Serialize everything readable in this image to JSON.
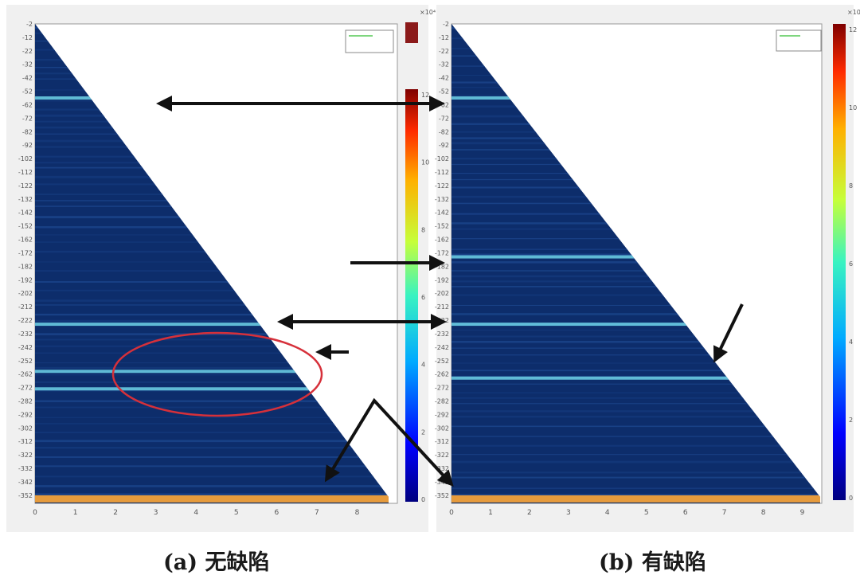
{
  "chart_data": [
    {
      "type": "heatmap",
      "panel": "a",
      "title": "",
      "xlabel": "",
      "ylabel": "",
      "x_ticks": [
        "0",
        "1",
        "2",
        "3",
        "4",
        "5",
        "6",
        "7",
        "8"
      ],
      "y_ticks": [
        "-2",
        "-12",
        "-22",
        "-32",
        "-42",
        "-52",
        "-62",
        "-72",
        "-82",
        "-92",
        "-102",
        "-112",
        "-122",
        "-132",
        "-142",
        "-152",
        "-162",
        "-172",
        "-182",
        "-192",
        "-202",
        "-212",
        "-222",
        "-232",
        "-242",
        "-252",
        "-262",
        "-272",
        "-282",
        "-292",
        "-302",
        "-312",
        "-322",
        "-332",
        "-342",
        "-352"
      ],
      "xlim": [
        0,
        9
      ],
      "ylim": [
        -2,
        -358
      ],
      "colorbar_ticks": [
        "12",
        "10",
        "8",
        "6",
        "4",
        "2",
        "0"
      ],
      "colorbar_exponent": "×10⁴",
      "colormap": "jet",
      "bright_bands_y": [
        -57,
        -225,
        -260,
        -273,
        -355
      ]
    },
    {
      "type": "heatmap",
      "panel": "b",
      "title": "",
      "xlabel": "",
      "ylabel": "",
      "x_ticks": [
        "0",
        "1",
        "2",
        "3",
        "4",
        "5",
        "6",
        "7",
        "8",
        "9"
      ],
      "y_ticks": [
        "-2",
        "-12",
        "-22",
        "-32",
        "-42",
        "-52",
        "-62",
        "-72",
        "-82",
        "-92",
        "-102",
        "-112",
        "-122",
        "-132",
        "-142",
        "-152",
        "-162",
        "-172",
        "-182",
        "-192",
        "-202",
        "-212",
        "-222",
        "-232",
        "-242",
        "-252",
        "-262",
        "-272",
        "-282",
        "-292",
        "-302",
        "-312",
        "-322",
        "-332",
        "-342",
        "-352"
      ],
      "xlim": [
        0,
        9.5
      ],
      "ylim": [
        -2,
        -358
      ],
      "colorbar_ticks": [
        "12",
        "10",
        "8",
        "6",
        "4",
        "2",
        "0"
      ],
      "colorbar_exponent": "×10⁴",
      "colormap": "jet",
      "bright_bands_y": [
        -57,
        -175,
        -225,
        -265,
        -355
      ]
    }
  ],
  "captions": {
    "a": "(a) 无缺陷",
    "b": "(b) 有缺陷"
  },
  "colors": {
    "panel_bg": "#f0f0f0",
    "heat_base": "#0d2d6b",
    "arrow": "#111111",
    "ellipse": "#d6303a"
  }
}
